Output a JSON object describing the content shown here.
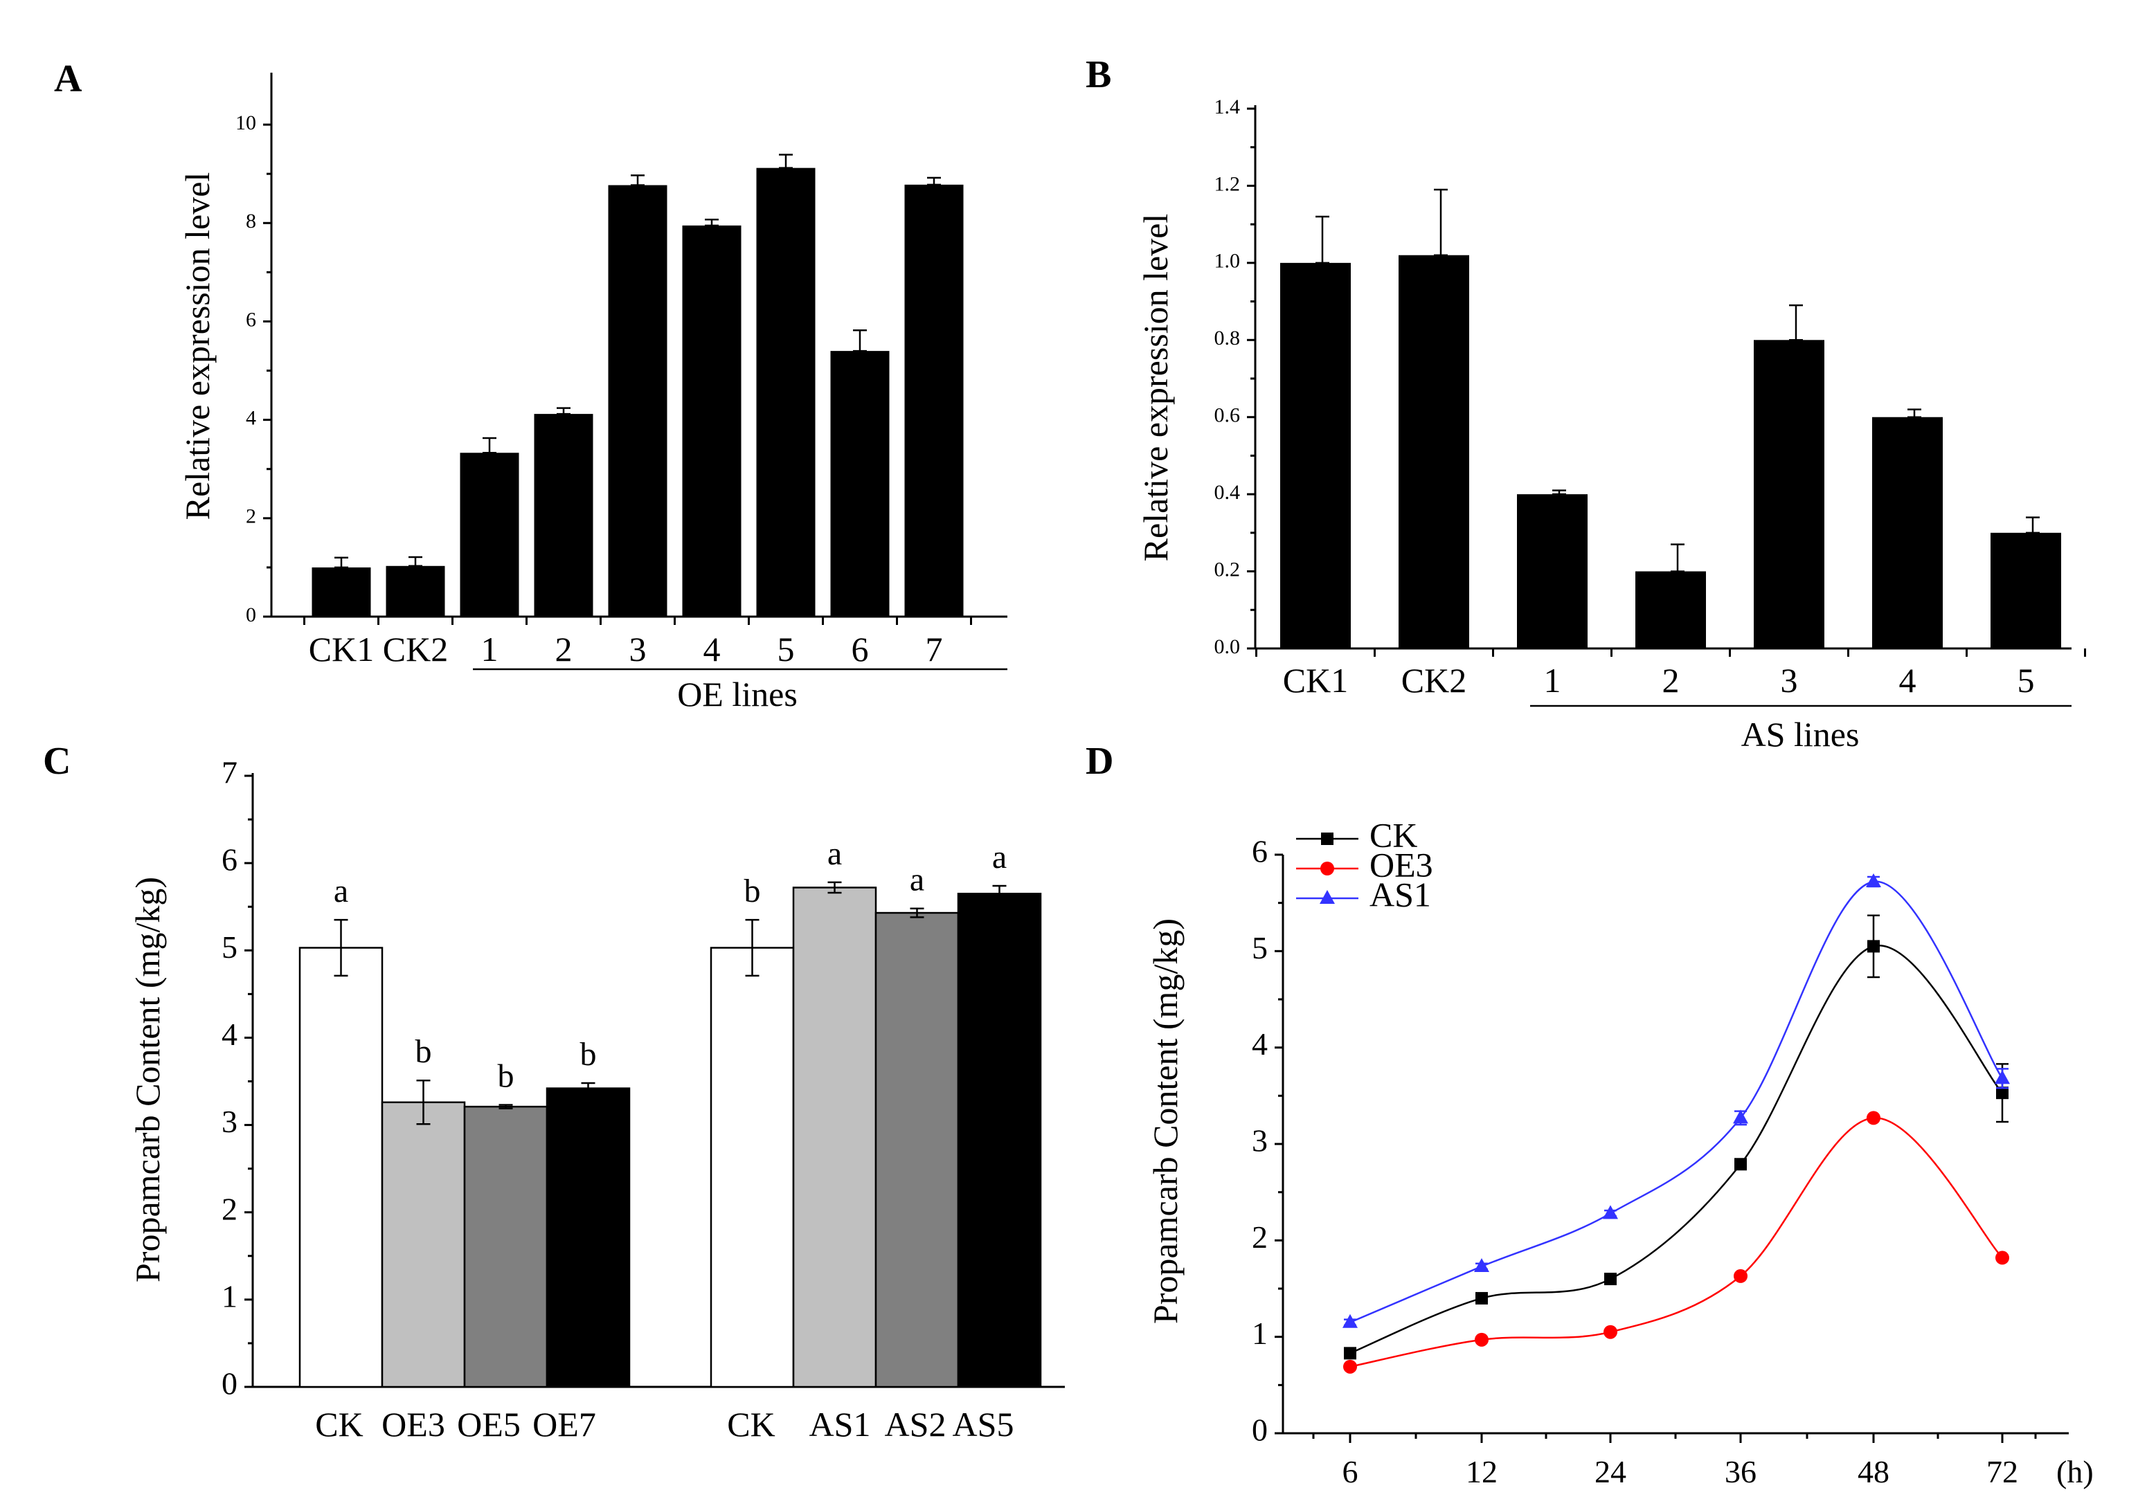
{
  "chart_data": [
    {
      "panel": "A",
      "type": "bar",
      "ylabel": "Relative expression level",
      "ylim": [
        0,
        11
      ],
      "yticks": [
        "0",
        "2",
        "4",
        "6",
        "8",
        "10"
      ],
      "categories": [
        "CK1",
        "CK2",
        "1",
        "2",
        "3",
        "4",
        "5",
        "6",
        "7"
      ],
      "values": [
        1.0,
        1.03,
        3.33,
        4.12,
        8.77,
        7.95,
        9.12,
        5.4,
        8.78
      ],
      "errors": [
        0.2,
        0.18,
        0.3,
        0.12,
        0.2,
        0.12,
        0.27,
        0.42,
        0.14
      ],
      "group_label": "OE lines",
      "bar_color": "#000000"
    },
    {
      "panel": "B",
      "type": "bar",
      "ylabel": "Relative expression level",
      "ylim": [
        0,
        1.4
      ],
      "yticks": [
        "0.0",
        "0.2",
        "0.4",
        "0.6",
        "0.8",
        "1.0",
        "1.2",
        "1.4"
      ],
      "categories": [
        "CK1",
        "CK2",
        "1",
        "2",
        "3",
        "4",
        "5"
      ],
      "values": [
        1.0,
        1.02,
        0.4,
        0.2,
        0.8,
        0.6,
        0.3
      ],
      "errors": [
        0.12,
        0.17,
        0.01,
        0.07,
        0.09,
        0.02,
        0.04
      ],
      "group_label": "AS lines",
      "bar_color": "#000000"
    },
    {
      "panel": "C",
      "type": "bar",
      "ylabel": "Propamcarb Content (mg/kg)",
      "ylim": [
        0,
        7
      ],
      "yticks": [
        "0",
        "1",
        "2",
        "3",
        "4",
        "5",
        "6",
        "7"
      ],
      "groups": [
        {
          "categories": [
            "CK",
            "OE3",
            "OE5",
            "OE7"
          ],
          "values": [
            5.03,
            3.26,
            3.21,
            3.42
          ],
          "errors": [
            0.32,
            0.25,
            0.02,
            0.06
          ],
          "letters": [
            "a",
            "b",
            "b",
            "b"
          ],
          "colors": [
            "#ffffff",
            "#c0c0c0",
            "#808080",
            "#000000"
          ]
        },
        {
          "categories": [
            "CK",
            "AS1",
            "AS2",
            "AS5"
          ],
          "values": [
            5.03,
            5.72,
            5.43,
            5.65
          ],
          "errors": [
            0.32,
            0.06,
            0.05,
            0.09
          ],
          "letters": [
            "b",
            "a",
            "a",
            "a"
          ],
          "colors": [
            "#ffffff",
            "#c0c0c0",
            "#808080",
            "#000000"
          ]
        }
      ]
    },
    {
      "panel": "D",
      "type": "line",
      "ylabel": "Propamcarb Content (mg/kg)",
      "ylim": [
        0,
        6
      ],
      "yticks": [
        "0",
        "1",
        "2",
        "3",
        "4",
        "5",
        "6"
      ],
      "x": [
        "6",
        "12",
        "24",
        "36",
        "48",
        "72"
      ],
      "xunit": "(h)",
      "series": [
        {
          "name": "CK",
          "color": "#000000",
          "marker": "square",
          "values": [
            0.83,
            1.4,
            1.6,
            2.79,
            5.05,
            3.53
          ],
          "errors": [
            0.03,
            0.03,
            0.03,
            0.04,
            0.32,
            0.3
          ]
        },
        {
          "name": "OE3",
          "color": "#ff0000",
          "marker": "circle",
          "values": [
            0.69,
            0.97,
            1.05,
            1.63,
            3.27,
            1.82
          ],
          "errors": [
            0.0,
            0.0,
            0.0,
            0.0,
            0.0,
            0.0
          ]
        },
        {
          "name": "AS1",
          "color": "#3333ff",
          "marker": "triangle",
          "values": [
            1.15,
            1.73,
            2.28,
            3.27,
            5.72,
            3.68
          ],
          "errors": [
            0.03,
            0.03,
            0.03,
            0.07,
            0.05,
            0.1
          ]
        }
      ]
    }
  ]
}
